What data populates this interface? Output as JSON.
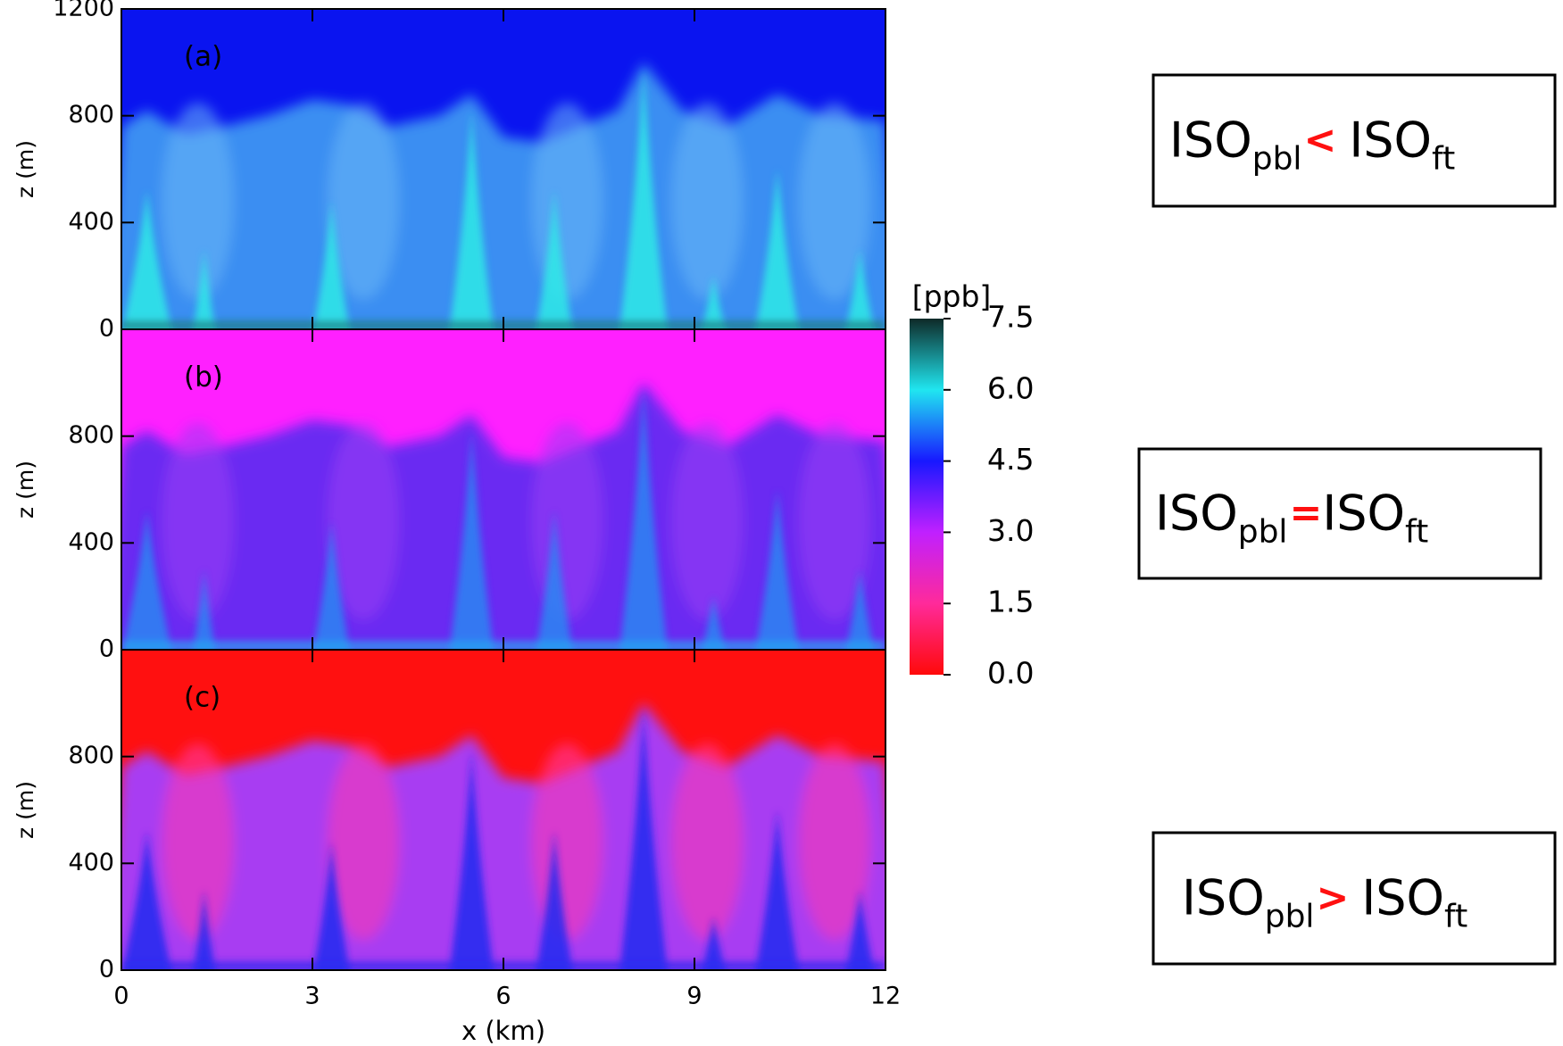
{
  "chart_data": [
    {
      "type": "heatmap",
      "label": "(a)",
      "ylabel": "z (m)",
      "xlim": [
        0,
        12
      ],
      "ylim": [
        0,
        1200
      ],
      "yticks": [
        0,
        400,
        800,
        1200
      ]
    },
    {
      "type": "heatmap",
      "label": "(b)",
      "ylabel": "z (m)",
      "xlim": [
        0,
        12
      ],
      "ylim": [
        0,
        1200
      ],
      "yticks": [
        0,
        400,
        800
      ]
    },
    {
      "type": "heatmap",
      "label": "(c)",
      "ylabel": "z (m)",
      "xlabel": "x (km)",
      "xlim": [
        0,
        12
      ],
      "ylim": [
        0,
        1200
      ],
      "yticks": [
        0,
        400,
        800
      ],
      "xticks": [
        0,
        3,
        6,
        9,
        12
      ]
    }
  ],
  "colorbar": {
    "label": "[ppb]",
    "lim": [
      0,
      7.5
    ],
    "ticks": [
      {
        "value": 0,
        "label": "0.0"
      },
      {
        "value": 1.5,
        "label": "1.5"
      },
      {
        "value": 3,
        "label": "3.0"
      },
      {
        "value": 4.5,
        "label": "4.5"
      },
      {
        "value": 6,
        "label": "6.0"
      },
      {
        "value": 7.5,
        "label": "7.5"
      }
    ],
    "colors": [
      "#ff0a0a",
      "#ff2a9a",
      "#c020ff",
      "#1818ff",
      "#20e6f0",
      "#0e2a28"
    ]
  },
  "annotations": [
    {
      "parts": [
        "ISO",
        "pbl",
        "<",
        "ISO",
        "ft"
      ]
    },
    {
      "parts": [
        "ISO",
        "pbl",
        "=",
        "ISO",
        "ft"
      ]
    },
    {
      "parts": [
        "ISO",
        "pbl",
        ">",
        "ISO",
        "ft"
      ]
    }
  ]
}
